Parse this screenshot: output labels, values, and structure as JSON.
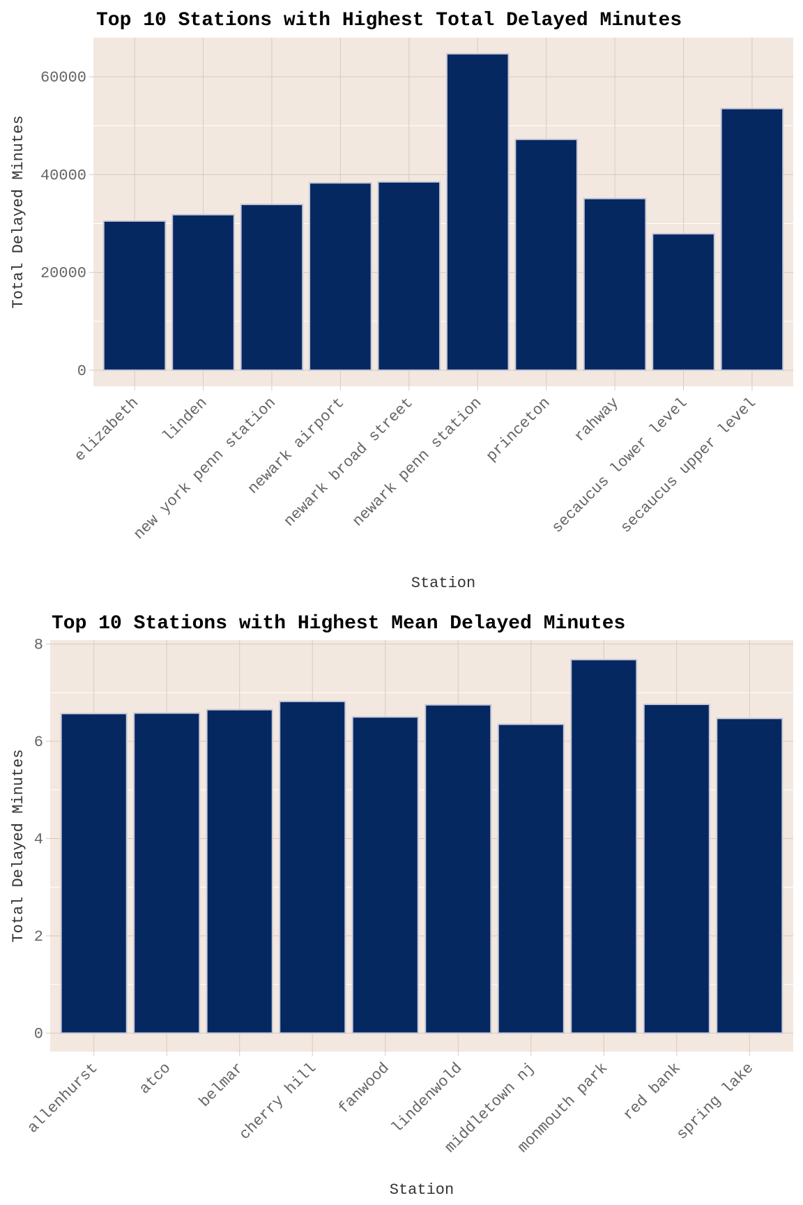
{
  "colors": {
    "panel": "#f3e8e0",
    "grid": "#d9c9bd",
    "bar_fill": "#052861",
    "bar_edge": "#c8c8d8"
  },
  "chart_data": [
    {
      "type": "bar",
      "title": "Top 10 Stations with Highest Total Delayed Minutes",
      "xlabel": "Station",
      "ylabel": "Total Delayed Minutes",
      "categories": [
        "elizabeth",
        "linden",
        "new york penn station",
        "newark airport",
        "newark broad street",
        "newark penn station",
        "princeton",
        "rahway",
        "secaucus lower level",
        "secaucus upper level"
      ],
      "values": [
        30500,
        31800,
        33900,
        38300,
        38500,
        64700,
        47200,
        35100,
        27900,
        53500
      ],
      "ylim": [
        -3300,
        68000
      ],
      "yticks": [
        0,
        20000,
        40000,
        60000
      ],
      "grid": true
    },
    {
      "type": "bar",
      "title": "Top 10 Stations with Highest Mean Delayed Minutes",
      "xlabel": "Station",
      "ylabel": "Total Delayed Minutes",
      "categories": [
        "allenhurst",
        "atco",
        "belmar",
        "cherry hill",
        "fanwood",
        "lindenwold",
        "middletown nj",
        "monmouth park",
        "red bank",
        "spring lake"
      ],
      "values": [
        6.57,
        6.58,
        6.65,
        6.82,
        6.5,
        6.75,
        6.35,
        7.68,
        6.76,
        6.47
      ],
      "ylim": [
        -0.38,
        8.08
      ],
      "yticks": [
        0,
        2,
        4,
        6,
        8
      ],
      "grid": true
    }
  ]
}
